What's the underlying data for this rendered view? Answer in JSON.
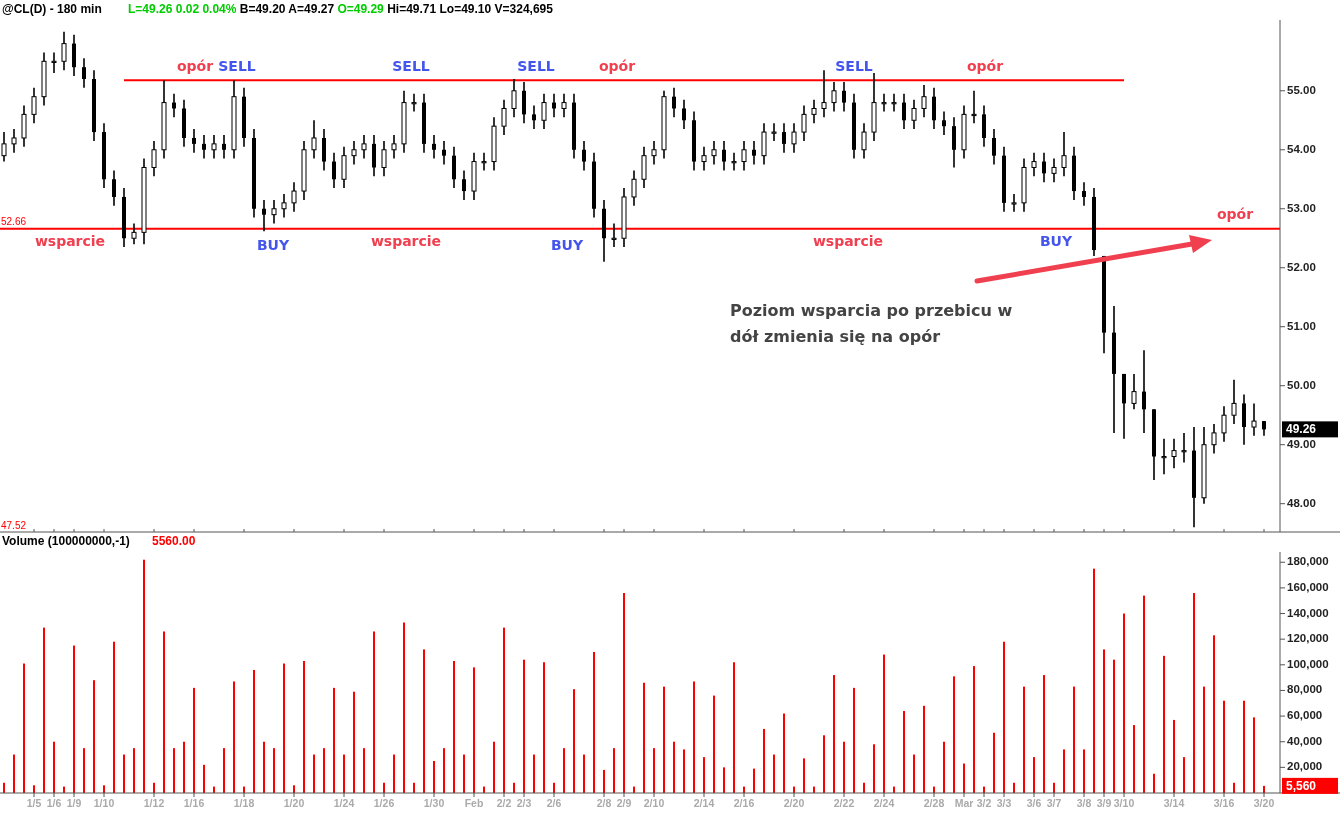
{
  "chart_data": [
    {
      "type": "candlestick",
      "title": "@CL(D) - 180 min",
      "subtitle": "L=49.26 0.02 0.04% B=49.20 A=49.27 O=49.29 Hi=49.71 Lo=49.10 V=324,695",
      "color": "#000000",
      "ylim": [
        47.52,
        56.2
      ],
      "tick_labels": "y",
      "yticks": [
        {
          "value": 48,
          "label": "48.00"
        },
        {
          "value": 49,
          "label": "49.00"
        },
        {
          "value": 50,
          "label": "50.00"
        },
        {
          "value": 51,
          "label": "51.00"
        },
        {
          "value": 52,
          "label": "52.00"
        },
        {
          "value": 53,
          "label": "53.00"
        },
        {
          "value": 54,
          "label": "54.00"
        },
        {
          "value": 55,
          "label": "55.00"
        }
      ],
      "categories": [
        null,
        null,
        null,
        "1/5",
        null,
        "1/6",
        null,
        "1/9",
        null,
        null,
        "1/10",
        null,
        null,
        null,
        null,
        "1/12",
        null,
        null,
        null,
        "1/16",
        null,
        null,
        null,
        null,
        "1/18",
        null,
        null,
        null,
        null,
        "1/20",
        null,
        null,
        null,
        null,
        "1/24",
        null,
        null,
        null,
        "1/26",
        null,
        null,
        null,
        null,
        "1/30",
        null,
        null,
        null,
        "Feb",
        null,
        null,
        "2/2",
        null,
        "2/3",
        null,
        null,
        "2/6",
        null,
        null,
        null,
        null,
        "2/8",
        null,
        "2/9",
        null,
        null,
        "2/10",
        null,
        null,
        null,
        null,
        "2/14",
        null,
        null,
        null,
        "2/16",
        null,
        null,
        null,
        null,
        "2/20",
        null,
        null,
        null,
        null,
        "2/22",
        null,
        null,
        null,
        "2/24",
        null,
        null,
        null,
        null,
        "2/28",
        null,
        null,
        "Mar",
        null,
        "3/2",
        null,
        "3/3",
        null,
        null,
        "3/6",
        null,
        "3/7",
        null,
        null,
        "3/8",
        null,
        "3/9",
        null,
        "3/10",
        null,
        null,
        null,
        null,
        "3/14",
        null,
        null,
        null,
        null,
        "3/16",
        null,
        null,
        null,
        "3/20"
      ],
      "ohlc": [
        [
          53.9,
          54.3,
          53.8,
          54.1
        ],
        [
          54.1,
          54.35,
          53.95,
          54.2
        ],
        [
          54.2,
          54.75,
          54.05,
          54.6
        ],
        [
          54.6,
          55.05,
          54.45,
          54.9
        ],
        [
          54.9,
          55.65,
          54.75,
          55.5
        ],
        [
          55.5,
          55.65,
          55.3,
          55.5
        ],
        [
          55.5,
          56.0,
          55.35,
          55.8
        ],
        [
          55.8,
          55.95,
          55.25,
          55.4
        ],
        [
          55.4,
          55.55,
          55.05,
          55.2
        ],
        [
          55.2,
          55.35,
          54.15,
          54.3
        ],
        [
          54.3,
          54.45,
          53.35,
          53.5
        ],
        [
          53.5,
          53.65,
          53.05,
          53.2
        ],
        [
          53.2,
          53.35,
          52.35,
          52.5
        ],
        [
          52.5,
          52.75,
          52.4,
          52.6
        ],
        [
          52.6,
          53.85,
          52.4,
          53.7
        ],
        [
          53.7,
          54.15,
          53.55,
          54.0
        ],
        [
          54.0,
          55.18,
          53.85,
          54.8
        ],
        [
          54.8,
          54.95,
          54.55,
          54.7
        ],
        [
          54.7,
          54.85,
          54.05,
          54.2
        ],
        [
          54.2,
          54.35,
          53.95,
          54.1
        ],
        [
          54.1,
          54.25,
          53.85,
          54.0
        ],
        [
          54.0,
          54.25,
          53.85,
          54.1
        ],
        [
          54.1,
          54.25,
          53.85,
          54.0
        ],
        [
          54.0,
          55.18,
          53.85,
          54.9
        ],
        [
          54.9,
          55.05,
          54.05,
          54.2
        ],
        [
          54.2,
          54.35,
          52.85,
          53.0
        ],
        [
          53.0,
          53.15,
          52.62,
          52.9
        ],
        [
          52.9,
          53.15,
          52.75,
          53.0
        ],
        [
          53.0,
          53.25,
          52.85,
          53.1
        ],
        [
          53.1,
          53.45,
          52.95,
          53.3
        ],
        [
          53.3,
          54.15,
          53.15,
          54.0
        ],
        [
          54.0,
          54.5,
          53.85,
          54.2
        ],
        [
          54.2,
          54.35,
          53.65,
          53.8
        ],
        [
          53.8,
          53.95,
          53.35,
          53.5
        ],
        [
          53.5,
          54.05,
          53.35,
          53.9
        ],
        [
          53.9,
          54.15,
          53.75,
          54.0
        ],
        [
          54.0,
          54.25,
          53.85,
          54.1
        ],
        [
          54.1,
          54.25,
          53.55,
          53.7
        ],
        [
          53.7,
          54.15,
          53.55,
          54.0
        ],
        [
          54.0,
          54.25,
          53.85,
          54.1
        ],
        [
          54.1,
          55.0,
          53.95,
          54.8
        ],
        [
          54.8,
          54.95,
          54.65,
          54.8
        ],
        [
          54.8,
          54.95,
          53.95,
          54.1
        ],
        [
          54.1,
          54.25,
          53.85,
          54.0
        ],
        [
          54.0,
          54.15,
          53.75,
          53.9
        ],
        [
          53.9,
          54.05,
          53.35,
          53.5
        ],
        [
          53.5,
          53.65,
          53.15,
          53.3
        ],
        [
          53.3,
          53.95,
          53.15,
          53.8
        ],
        [
          53.8,
          53.95,
          53.65,
          53.8
        ],
        [
          53.8,
          54.55,
          53.65,
          54.4
        ],
        [
          54.4,
          54.85,
          54.25,
          54.7
        ],
        [
          54.7,
          55.2,
          54.55,
          55.0
        ],
        [
          55.0,
          55.15,
          54.45,
          54.6
        ],
        [
          54.6,
          54.75,
          54.35,
          54.5
        ],
        [
          54.5,
          54.95,
          54.35,
          54.8
        ],
        [
          54.8,
          54.95,
          54.55,
          54.7
        ],
        [
          54.7,
          54.95,
          54.55,
          54.8
        ],
        [
          54.8,
          54.95,
          53.85,
          54.0
        ],
        [
          54.0,
          54.15,
          53.65,
          53.8
        ],
        [
          53.8,
          53.95,
          52.85,
          53.0
        ],
        [
          53.0,
          53.15,
          52.1,
          52.5
        ],
        [
          52.5,
          52.75,
          52.35,
          52.5
        ],
        [
          52.5,
          53.35,
          52.35,
          53.2
        ],
        [
          53.2,
          53.65,
          53.05,
          53.5
        ],
        [
          53.5,
          54.05,
          53.35,
          53.9
        ],
        [
          53.9,
          54.15,
          53.75,
          54.0
        ],
        [
          54.0,
          55.0,
          53.85,
          54.9
        ],
        [
          54.9,
          55.05,
          54.55,
          54.7
        ],
        [
          54.7,
          54.85,
          54.35,
          54.5
        ],
        [
          54.5,
          54.65,
          53.65,
          53.8
        ],
        [
          53.8,
          54.05,
          53.65,
          53.9
        ],
        [
          53.9,
          54.15,
          53.75,
          54.0
        ],
        [
          54.0,
          54.15,
          53.65,
          53.8
        ],
        [
          53.8,
          53.95,
          53.65,
          53.8
        ],
        [
          53.8,
          54.15,
          53.65,
          54.0
        ],
        [
          54.0,
          54.15,
          53.75,
          53.9
        ],
        [
          53.9,
          54.45,
          53.75,
          54.3
        ],
        [
          54.3,
          54.45,
          54.15,
          54.3
        ],
        [
          54.3,
          54.45,
          53.95,
          54.1
        ],
        [
          54.1,
          54.45,
          53.95,
          54.3
        ],
        [
          54.3,
          54.75,
          54.15,
          54.6
        ],
        [
          54.6,
          54.85,
          54.45,
          54.7
        ],
        [
          54.7,
          55.35,
          54.55,
          54.8
        ],
        [
          54.8,
          55.15,
          54.65,
          55.0
        ],
        [
          55.0,
          55.15,
          54.65,
          54.8
        ],
        [
          54.8,
          54.95,
          53.85,
          54.0
        ],
        [
          54.0,
          54.45,
          53.85,
          54.3
        ],
        [
          54.3,
          55.3,
          54.15,
          54.8
        ],
        [
          54.8,
          54.95,
          54.65,
          54.8
        ],
        [
          54.8,
          54.95,
          54.65,
          54.8
        ],
        [
          54.8,
          54.95,
          54.35,
          54.5
        ],
        [
          54.5,
          54.85,
          54.35,
          54.7
        ],
        [
          54.7,
          55.1,
          54.55,
          54.9
        ],
        [
          54.9,
          55.05,
          54.35,
          54.5
        ],
        [
          54.5,
          54.65,
          54.25,
          54.4
        ],
        [
          54.4,
          54.55,
          53.7,
          54.0
        ],
        [
          54.0,
          54.75,
          53.85,
          54.6
        ],
        [
          54.6,
          55.0,
          54.45,
          54.6
        ],
        [
          54.6,
          54.75,
          54.05,
          54.2
        ],
        [
          54.2,
          54.35,
          53.75,
          53.9
        ],
        [
          53.9,
          54.05,
          52.95,
          53.1
        ],
        [
          53.1,
          53.25,
          52.95,
          53.1
        ],
        [
          53.1,
          53.85,
          52.95,
          53.7
        ],
        [
          53.7,
          53.95,
          53.55,
          53.8
        ],
        [
          53.8,
          53.95,
          53.45,
          53.6
        ],
        [
          53.6,
          53.85,
          53.45,
          53.7
        ],
        [
          53.7,
          54.3,
          53.55,
          53.9
        ],
        [
          53.9,
          54.05,
          53.15,
          53.3
        ],
        [
          53.3,
          53.45,
          53.05,
          53.2
        ],
        [
          53.2,
          53.35,
          52.2,
          52.3
        ],
        [
          52.2,
          52.2,
          50.55,
          50.9
        ],
        [
          50.9,
          51.35,
          49.2,
          50.2
        ],
        [
          50.2,
          50.2,
          49.1,
          49.7
        ],
        [
          49.7,
          50.2,
          49.6,
          49.9
        ],
        [
          49.9,
          50.6,
          49.2,
          49.6
        ],
        [
          49.6,
          49.6,
          48.4,
          48.8
        ],
        [
          48.8,
          49.1,
          48.5,
          48.8
        ],
        [
          48.8,
          49.1,
          48.6,
          48.9
        ],
        [
          48.9,
          49.2,
          48.7,
          48.9
        ],
        [
          48.9,
          49.3,
          47.6,
          48.1
        ],
        [
          48.1,
          49.3,
          48.0,
          49.0
        ],
        [
          49.0,
          49.35,
          48.85,
          49.2
        ],
        [
          49.2,
          49.65,
          49.05,
          49.5
        ],
        [
          49.5,
          50.1,
          49.35,
          49.7
        ],
        [
          49.7,
          49.85,
          49.0,
          49.3
        ],
        [
          49.3,
          49.7,
          49.15,
          49.4
        ],
        [
          49.4,
          49.4,
          49.15,
          49.26
        ]
      ],
      "series": [
        {
          "type": "line",
          "color": "#ff0000",
          "values": [
            null,
            null,
            null,
            null,
            null,
            null,
            null,
            null,
            null,
            null,
            null,
            null,
            55.18,
            55.18,
            55.18,
            55.18,
            55.18,
            55.18,
            55.18,
            55.18,
            55.18,
            55.18,
            55.18,
            55.18,
            55.18,
            55.18,
            55.18,
            55.18,
            55.18,
            55.18,
            55.18,
            55.18,
            55.18,
            55.18,
            55.18,
            55.18,
            55.18,
            55.18,
            55.18,
            55.18,
            55.18,
            55.18,
            55.18,
            55.18,
            55.18,
            55.18,
            55.18,
            55.18,
            55.18,
            55.18,
            55.18,
            55.18,
            55.18,
            55.18,
            55.18,
            55.18,
            55.18,
            55.18,
            55.18,
            55.18,
            55.18,
            55.18,
            55.18,
            55.18,
            55.18,
            55.18,
            55.18,
            55.18,
            55.18,
            55.18,
            55.18,
            55.18,
            55.18,
            55.18,
            55.18,
            55.18,
            55.18,
            55.18,
            55.18,
            55.18,
            55.18,
            55.18,
            55.18,
            55.18,
            55.18,
            55.18,
            55.18,
            55.18,
            55.18,
            55.18,
            55.18,
            55.18,
            55.18,
            55.18,
            55.18,
            55.18,
            55.18,
            55.18,
            55.18,
            55.18,
            55.18,
            55.18,
            55.18,
            55.18,
            55.18,
            55.18,
            55.18,
            55.18,
            55.18,
            55.18,
            55.18,
            55.18,
            55.18,
            null,
            null,
            null,
            null,
            null,
            null,
            null,
            null,
            null,
            null,
            null,
            null,
            null,
            null
          ]
        }
      ],
      "ref_lines": [
        {
          "axis": "y",
          "value": 52.66,
          "label": "52.66",
          "color": "#ff0000"
        }
      ],
      "annotations": [
        "opór",
        "opór",
        "opór",
        "opór",
        "wsparcie",
        "wsparcie",
        "wsparcie",
        "SELL",
        "SELL",
        "SELL",
        "SELL",
        "BUY",
        "BUY",
        "BUY",
        "Poziom wsparcia po przebicu w dół zmienia się na opór",
        "47.52",
        {
          "text": "49.26",
          "x": "3/20",
          "y": 49.26
        }
      ]
    },
    {
      "type": "bar",
      "title": "Volume (100000000,-1)",
      "subtitle": "5560.00",
      "color": "#ff0000",
      "ylim": [
        0,
        188000
      ],
      "yticks": [
        {
          "value": 20000,
          "label": "20,000"
        },
        {
          "value": 40000,
          "label": "40,000"
        },
        {
          "value": 60000,
          "label": "60,000"
        },
        {
          "value": 80000,
          "label": "80,000"
        },
        {
          "value": 100000,
          "label": "100,000"
        },
        {
          "value": 120000,
          "label": "120,000"
        },
        {
          "value": 140000,
          "label": "140,000"
        },
        {
          "value": 160000,
          "label": "160,000"
        },
        {
          "value": 180000,
          "label": "180,000"
        }
      ],
      "categories": [
        null,
        null,
        null,
        "1/5",
        null,
        "1/6",
        null,
        "1/9",
        null,
        null,
        "1/10",
        null,
        null,
        null,
        null,
        "1/12",
        null,
        null,
        null,
        "1/16",
        null,
        null,
        null,
        null,
        "1/18",
        null,
        null,
        null,
        null,
        "1/20",
        null,
        null,
        null,
        null,
        "1/24",
        null,
        null,
        null,
        "1/26",
        null,
        null,
        null,
        null,
        "1/30",
        null,
        null,
        null,
        "Feb",
        null,
        null,
        "2/2",
        null,
        "2/3",
        null,
        null,
        "2/6",
        null,
        null,
        null,
        null,
        "2/8",
        null,
        "2/9",
        null,
        null,
        "2/10",
        null,
        null,
        null,
        null,
        "2/14",
        null,
        null,
        null,
        "2/16",
        null,
        null,
        null,
        null,
        "2/20",
        null,
        null,
        null,
        null,
        "2/22",
        null,
        null,
        null,
        "2/24",
        null,
        null,
        null,
        null,
        "2/28",
        null,
        null,
        "Mar",
        null,
        "3/2",
        null,
        "3/3",
        null,
        null,
        "3/6",
        null,
        "3/7",
        null,
        null,
        "3/8",
        null,
        "3/9",
        null,
        "3/10",
        null,
        null,
        null,
        null,
        "3/14",
        null,
        null,
        null,
        null,
        "3/16",
        null,
        null,
        null,
        "3/20"
      ],
      "values": [
        8000,
        30000,
        101000,
        6000,
        129000,
        40000,
        5000,
        115000,
        35000,
        88000,
        6000,
        118000,
        30000,
        35000,
        182000,
        8000,
        126000,
        35000,
        40000,
        82000,
        22000,
        5000,
        35000,
        87000,
        5000,
        96000,
        40000,
        35000,
        101000,
        6000,
        103000,
        30000,
        35000,
        82000,
        30000,
        79000,
        35000,
        126000,
        8000,
        30000,
        133000,
        8000,
        112000,
        25000,
        35000,
        103000,
        30000,
        98000,
        5000,
        40000,
        129000,
        8000,
        104000,
        30000,
        102000,
        8000,
        35000,
        81000,
        30000,
        110000,
        18000,
        35000,
        156000,
        5000,
        86000,
        35000,
        83000,
        40000,
        34000,
        87000,
        28000,
        76000,
        20000,
        102000,
        5000,
        19000,
        50000,
        30000,
        62000,
        5000,
        27000,
        5000,
        45000,
        92000,
        40000,
        82000,
        8000,
        38000,
        108000,
        5000,
        64000,
        30000,
        68000,
        5000,
        40000,
        91000,
        23000,
        99000,
        5000,
        47000,
        118000,
        8000,
        83000,
        28000,
        92000,
        8000,
        34000,
        83000,
        34000,
        175000,
        112000,
        104000,
        140000,
        53000,
        154000,
        15000,
        107000,
        57000,
        28000,
        156000,
        83000,
        123000,
        72000,
        8000,
        72000,
        59000,
        5560
      ],
      "annotations": [
        {
          "text": "5,560",
          "x": "3/20",
          "y": 5560
        }
      ]
    }
  ]
}
